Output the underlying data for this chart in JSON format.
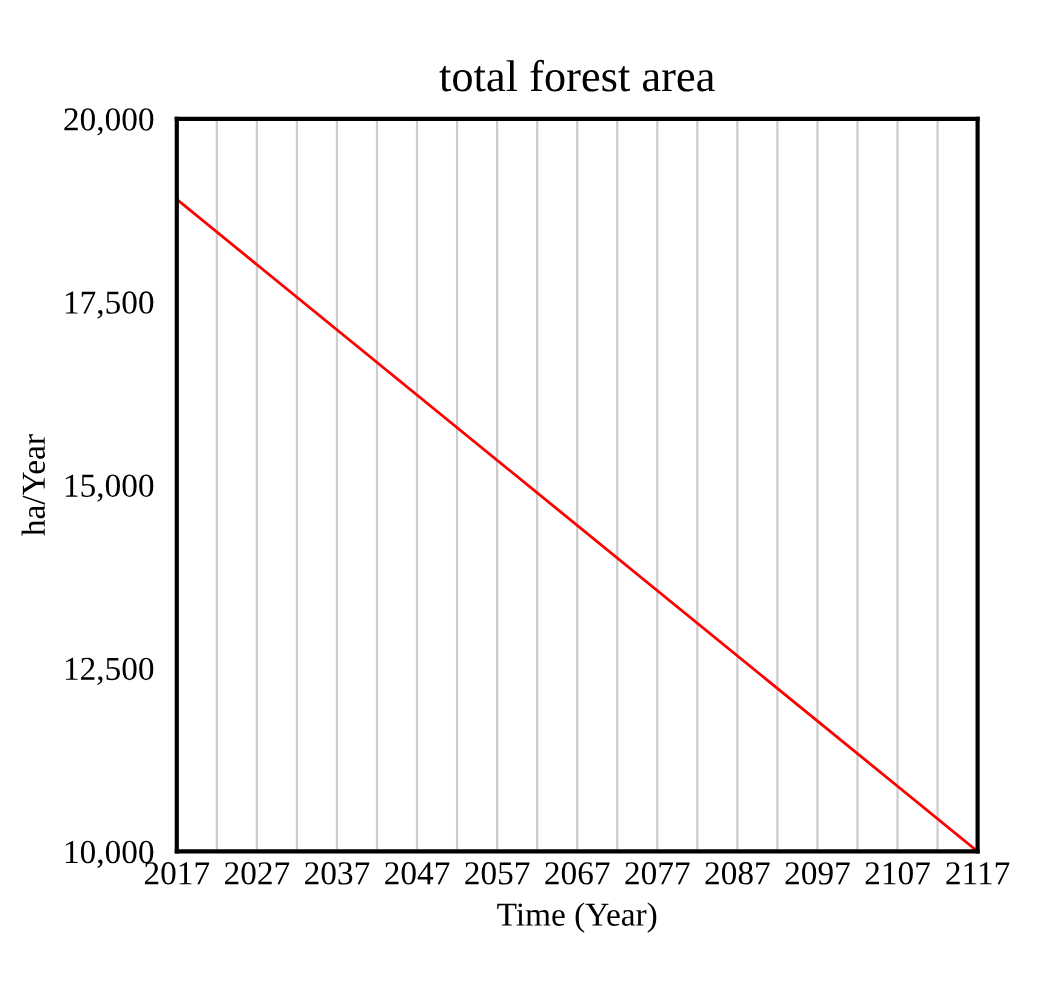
{
  "chart_data": {
    "type": "line",
    "title": "total forest area",
    "xlabel": "Time (Year)",
    "ylabel": "ha/Year",
    "x": [
      2017,
      2117
    ],
    "series": [
      {
        "color": "#ff0000",
        "values": [
          18900,
          10000
        ]
      }
    ],
    "xlim": [
      2017,
      2117
    ],
    "xticks": [
      2017,
      {
        "value": 2022,
        "label": null
      },
      2027,
      {
        "value": 2032,
        "label": null
      },
      2037,
      {
        "value": 2042,
        "label": null
      },
      2047,
      {
        "value": 2052,
        "label": null
      },
      2057,
      {
        "value": 2062,
        "label": null
      },
      2067,
      {
        "value": 2072,
        "label": null
      },
      2077,
      {
        "value": 2082,
        "label": null
      },
      2087,
      {
        "value": 2092,
        "label": null
      },
      2097,
      {
        "value": 2102,
        "label": null
      },
      2107,
      {
        "value": 2112,
        "label": null
      },
      2117
    ],
    "ylim": [
      10000,
      20000
    ],
    "yticks": [
      {
        "value": 10000,
        "label": "10,000"
      },
      {
        "value": 12500,
        "label": "12,500"
      },
      {
        "value": 15000,
        "label": "15,000"
      },
      {
        "value": 17500,
        "label": "17,500"
      },
      {
        "value": 20000,
        "label": "20,000"
      }
    ],
    "grid": "x",
    "marker": "none",
    "line_style": "solid"
  }
}
